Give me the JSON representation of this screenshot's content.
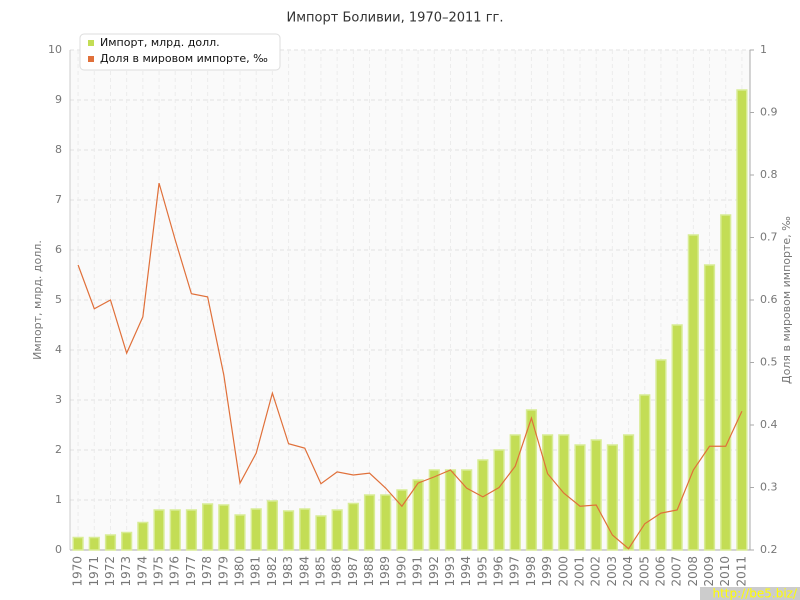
{
  "chart_data": {
    "type": "bar-line",
    "title": "Импорт Боливии, 1970–2011 гг.",
    "y_label": "Импорт, млрд. долл.",
    "y2_label": "Доля в мировом импорте, ‰",
    "watermark": "http://be5.biz/",
    "categories": [
      "1970",
      "1971",
      "1972",
      "1973",
      "1974",
      "1975",
      "1976",
      "1977",
      "1978",
      "1979",
      "1980",
      "1981",
      "1982",
      "1983",
      "1984",
      "1985",
      "1986",
      "1987",
      "1988",
      "1989",
      "1990",
      "1991",
      "1992",
      "1993",
      "1994",
      "1995",
      "1996",
      "1997",
      "1998",
      "1999",
      "2000",
      "2001",
      "2002",
      "2003",
      "2004",
      "2005",
      "2006",
      "2007",
      "2008",
      "2009",
      "2010",
      "2011"
    ],
    "series": [
      {
        "name": "Импорт, млрд. долл.",
        "type": "bar",
        "color": "#c3dd55",
        "values": [
          0.25,
          0.25,
          0.3,
          0.35,
          0.55,
          0.8,
          0.8,
          0.8,
          0.92,
          0.9,
          0.7,
          0.82,
          0.98,
          0.78,
          0.82,
          0.68,
          0.8,
          0.93,
          1.1,
          1.1,
          1.2,
          1.4,
          1.6,
          1.6,
          1.6,
          1.8,
          2.0,
          2.3,
          2.8,
          2.3,
          2.3,
          2.1,
          2.2,
          2.1,
          2.3,
          3.1,
          3.8,
          4.5,
          6.3,
          5.7,
          6.7,
          9.2
        ]
      },
      {
        "name": "Доля в мировом импорте, ‰",
        "type": "line",
        "axis": "y2",
        "color": "#e0703a",
        "values": [
          0.656,
          0.586,
          0.6,
          0.515,
          0.573,
          0.787,
          0.696,
          0.61,
          0.605,
          0.48,
          0.307,
          0.355,
          0.451,
          0.37,
          0.363,
          0.306,
          0.325,
          0.32,
          0.323,
          0.299,
          0.27,
          0.307,
          0.317,
          0.328,
          0.299,
          0.285,
          0.3,
          0.334,
          0.411,
          0.322,
          0.291,
          0.27,
          0.272,
          0.224,
          0.202,
          0.242,
          0.259,
          0.264,
          0.328,
          0.366,
          0.366,
          0.422
        ]
      }
    ],
    "ylim": [
      0,
      10
    ],
    "yticks": [
      0,
      1,
      2,
      3,
      4,
      5,
      6,
      7,
      8,
      9,
      10
    ],
    "y2lim": [
      0.2,
      1
    ],
    "y2ticks": [
      0.2,
      0.3,
      0.4,
      0.5,
      0.6,
      0.7,
      0.8,
      0.9,
      1
    ],
    "grid": true
  }
}
